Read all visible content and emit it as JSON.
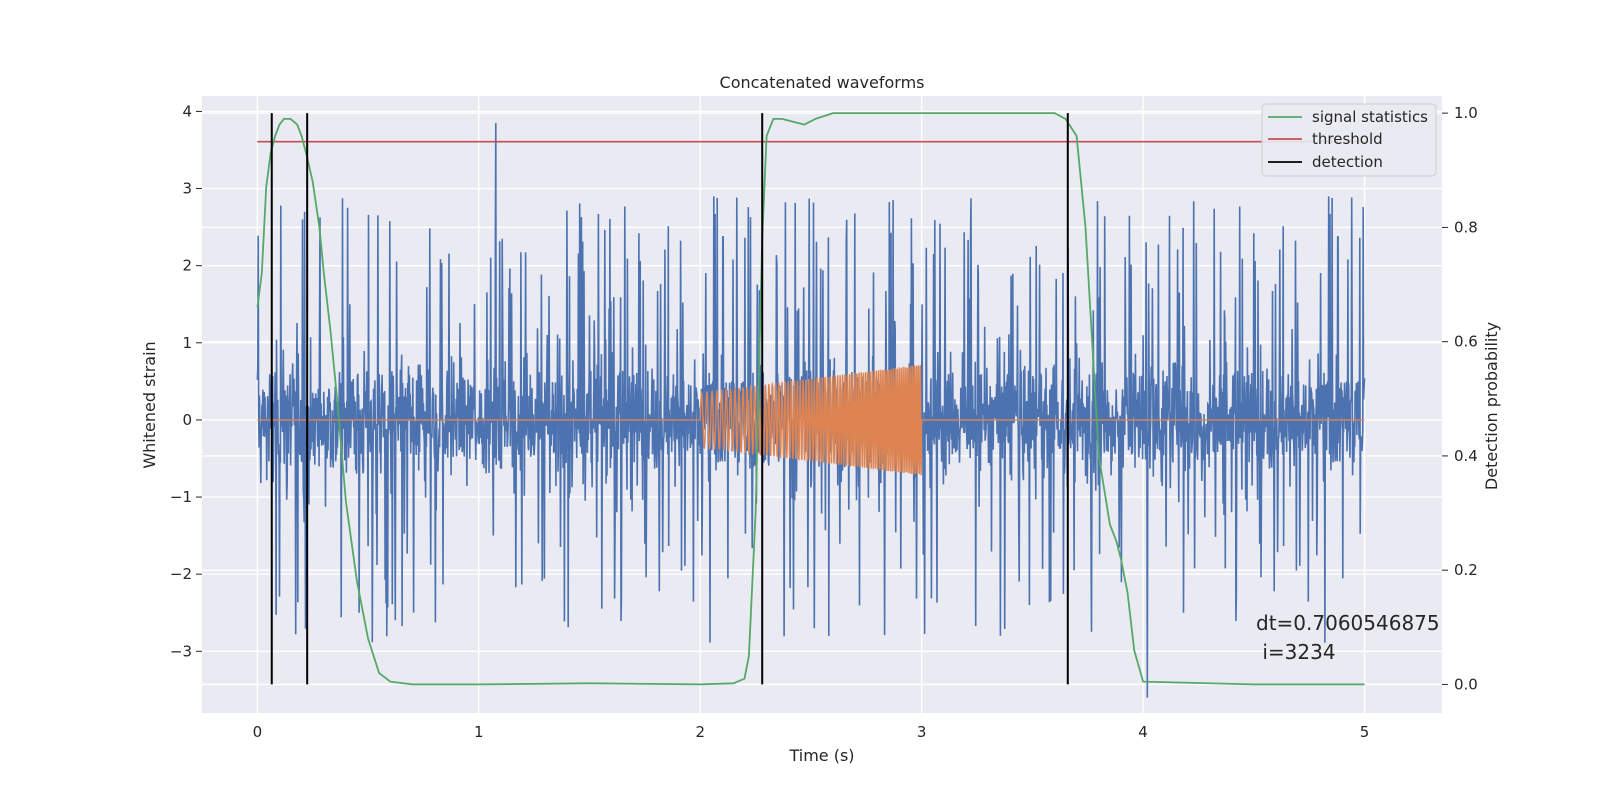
{
  "chart_data": {
    "type": "line",
    "title": "Concatenated waveforms",
    "xlabel": "Time (s)",
    "ylabel": "Whitened strain",
    "ylabel_right": "Detection probability",
    "xlim": [
      -0.25,
      5.35
    ],
    "ylim": [
      -3.8,
      4.2
    ],
    "ylim_right": [
      -0.05,
      1.03
    ],
    "x_ticks": [
      0,
      1,
      2,
      3,
      4,
      5
    ],
    "y_ticks": [
      -3,
      -2,
      -1,
      0,
      1,
      2,
      3,
      4
    ],
    "y_ticks_right": [
      0.0,
      0.2,
      0.4,
      0.6,
      0.8,
      1.0
    ],
    "x_tick_labels": [
      "0",
      "1",
      "2",
      "3",
      "4",
      "5"
    ],
    "y_tick_labels": [
      "−3",
      "−2",
      "−1",
      "0",
      "1",
      "2",
      "3",
      "4"
    ],
    "y_tick_labels_right": [
      "0.0",
      "0.2",
      "0.4",
      "0.6",
      "0.8",
      "1.0"
    ],
    "grid": true,
    "legend_position": "top-right",
    "series": [
      {
        "name": "",
        "role": "whitened strain noise",
        "axis": "left",
        "color": "#4c72b0",
        "x_range": [
          0,
          5
        ],
        "core_amplitude": 0.8,
        "peak_range": [
          -3.6,
          3.85
        ]
      },
      {
        "name": "",
        "role": "injected chirp waveform",
        "axis": "left",
        "color": "#dd8452",
        "x_range": [
          0,
          5
        ],
        "chirp_range": [
          2.0,
          3.0
        ],
        "amplitude_start": 0.35,
        "amplitude_end": 0.72
      },
      {
        "name": "signal statistics",
        "axis": "right",
        "color": "#55a868",
        "x": [
          0,
          0.02,
          0.04,
          0.06,
          0.08,
          0.1,
          0.12,
          0.15,
          0.18,
          0.2,
          0.22,
          0.25,
          0.28,
          0.3,
          0.33,
          0.36,
          0.4,
          0.45,
          0.5,
          0.55,
          0.6,
          0.7,
          1.0,
          1.5,
          2.0,
          2.15,
          2.2,
          2.22,
          2.25,
          2.28,
          2.3,
          2.33,
          2.37,
          2.42,
          2.47,
          2.52,
          2.6,
          3.0,
          3.5,
          3.6,
          3.65,
          3.7,
          3.74,
          3.8,
          3.85,
          3.88,
          3.9,
          3.93,
          3.96,
          4.0,
          4.5,
          5.0
        ],
        "y": [
          0.66,
          0.72,
          0.87,
          0.93,
          0.96,
          0.98,
          0.99,
          0.99,
          0.98,
          0.96,
          0.93,
          0.88,
          0.8,
          0.72,
          0.62,
          0.5,
          0.32,
          0.18,
          0.08,
          0.02,
          0.005,
          0.0,
          0.0,
          0.002,
          0.0,
          0.002,
          0.01,
          0.05,
          0.3,
          0.78,
          0.96,
          0.99,
          0.99,
          0.985,
          0.98,
          0.99,
          1.0,
          1.0,
          1.0,
          1.0,
          0.99,
          0.96,
          0.8,
          0.4,
          0.28,
          0.25,
          0.22,
          0.16,
          0.06,
          0.005,
          0.0,
          0.0
        ]
      },
      {
        "name": "threshold",
        "axis": "right",
        "color": "#c44e52",
        "x": [
          0,
          5
        ],
        "y": [
          0.95,
          0.95
        ]
      },
      {
        "name": "detection",
        "axis": "right",
        "color": "#000000",
        "type": "vlines",
        "x": [
          0.065,
          0.225,
          2.28,
          3.66
        ],
        "y_range": [
          0.0,
          1.0
        ]
      }
    ],
    "annotation": {
      "line1": "dt=0.7060546875",
      "line2": " i=3234",
      "x": 4.5,
      "y": -2.7
    }
  }
}
